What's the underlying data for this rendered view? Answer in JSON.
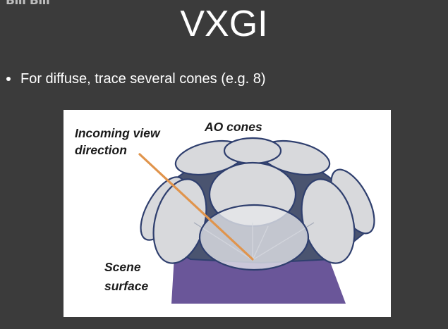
{
  "watermark": "Bili Bili",
  "slide": {
    "title": "VXGI",
    "bullets": [
      "For diffuse, trace several cones (e.g. 8)"
    ]
  },
  "figure": {
    "labels": {
      "incoming_line1": "Incoming view",
      "incoming_line2": "direction",
      "ao_cones": "AO cones",
      "scene_line1": "Scene",
      "scene_line2": "surface"
    },
    "colors": {
      "cone_fill": "#d8d9dc",
      "cone_outline": "#2f3f6e",
      "surface": "#6a5699",
      "view_ray": "#e0944c"
    }
  }
}
